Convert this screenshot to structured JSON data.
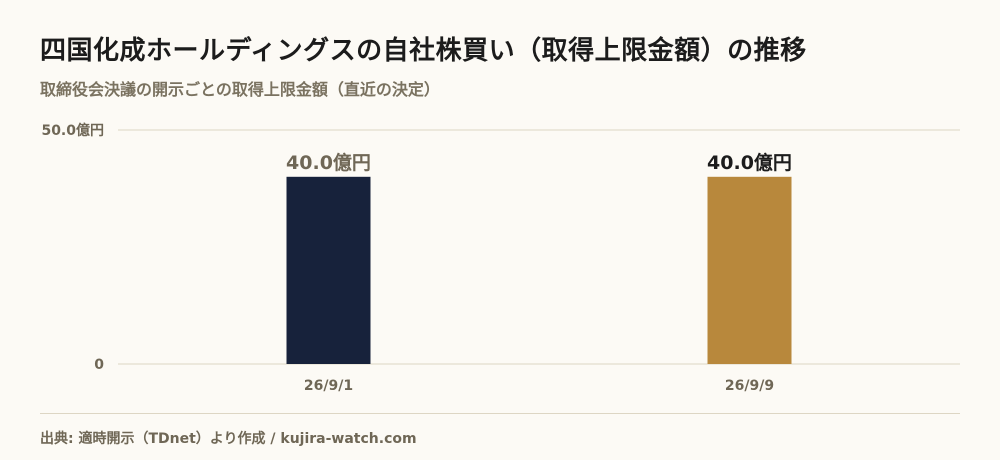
{
  "title": "四国化成ホールディングスの自社株買い（取得上限金額）の推移",
  "subtitle": "取締役会決議の開示ごとの取得上限金額（直近の決定）",
  "source": "出典: 適時開示（TDnet）より作成 / kujira-watch.com",
  "chart_data": {
    "type": "bar",
    "categories": [
      "26/9/1",
      "26/9/9"
    ],
    "values": [
      40.0,
      40.0
    ],
    "data_labels": [
      "40.0億円",
      "40.0億円"
    ],
    "ylim": [
      0,
      50
    ],
    "yticks": [
      {
        "value": 0,
        "label": "0"
      },
      {
        "value": 50,
        "label": "50.0億円"
      }
    ],
    "grid": true,
    "colors": [
      "#17223b",
      "#b8883c"
    ],
    "label_colors": [
      "#6f6756",
      "#1c1c1c"
    ]
  }
}
